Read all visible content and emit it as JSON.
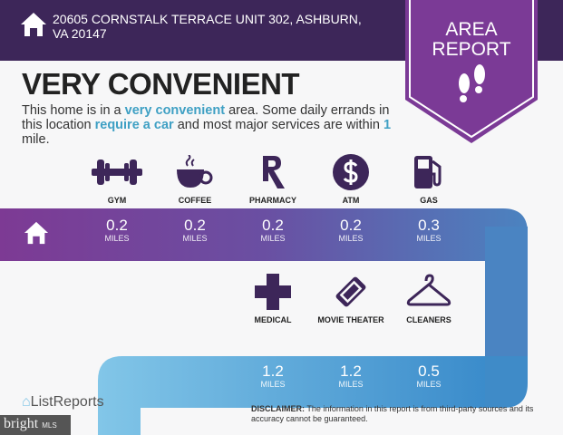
{
  "header": {
    "address": "20605 CORNSTALK TERRACE UNIT 302, ASHBURN, VA 20147",
    "icon": "home-icon"
  },
  "badge": {
    "line1": "AREA",
    "line2": "REPORT",
    "icon": "footprints-icon",
    "color": "#7b3a96"
  },
  "headline": "VERY CONVENIENT",
  "description": {
    "p1": "This home is in a ",
    "h1": "very convenient",
    "p2": " area. Some daily errands in this location ",
    "h2": "require a car",
    "p3": " and most major services are within ",
    "h3": "1",
    "p4": " mile."
  },
  "unit": "MILES",
  "amenities_top": [
    {
      "label": "GYM",
      "distance": "0.2",
      "icon": "dumbbell-icon"
    },
    {
      "label": "COFFEE",
      "distance": "0.2",
      "icon": "coffee-cup-icon"
    },
    {
      "label": "PHARMACY",
      "distance": "0.2",
      "icon": "rx-icon"
    },
    {
      "label": "ATM",
      "distance": "0.2",
      "icon": "dollar-icon"
    },
    {
      "label": "GAS",
      "distance": "0.3",
      "icon": "gas-pump-icon"
    }
  ],
  "amenities_bottom": [
    {
      "label": "MEDICAL",
      "distance": "1.2",
      "icon": "medical-cross-icon"
    },
    {
      "label": "MOVIE THEATER",
      "distance": "1.2",
      "icon": "ticket-icon"
    },
    {
      "label": "CLEANERS",
      "distance": "0.5",
      "icon": "hanger-icon"
    }
  ],
  "disclaimer": {
    "bold": "DISCLAIMER:",
    "text": " The information in this report is from third-party sources and its accuracy cannot be guaranteed."
  },
  "footer": {
    "logo": "ListReports",
    "watermark": "bright",
    "watermark_small": "MLS"
  },
  "colors": {
    "header": "#3d2659",
    "icon": "#3d2659",
    "accent": "#3fa0c4"
  }
}
